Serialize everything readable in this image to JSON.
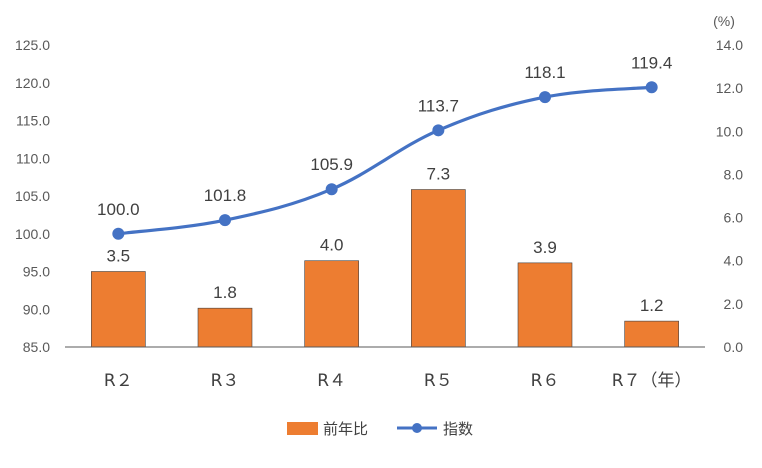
{
  "chart_data": {
    "type": "bar+line",
    "categories": [
      "R２",
      "R３",
      "R４",
      "R５",
      "R６",
      "R７（年）"
    ],
    "series": [
      {
        "name": "前年比",
        "type": "bar",
        "axis": "right",
        "color": "#ED7D31",
        "values": [
          3.5,
          1.8,
          4.0,
          7.3,
          3.9,
          1.2
        ],
        "labels": [
          "3.5",
          "1.8",
          "4.0",
          "7.3",
          "3.9",
          "1.2"
        ]
      },
      {
        "name": "指数",
        "type": "line",
        "axis": "left",
        "color": "#4472C4",
        "values": [
          100.0,
          101.8,
          105.9,
          113.7,
          118.1,
          119.4
        ],
        "labels": [
          "100.0",
          "101.8",
          "105.9",
          "113.7",
          "118.1",
          "119.4"
        ]
      }
    ],
    "left_axis": {
      "ylim": [
        85.0,
        125.0
      ],
      "ticks": [
        "85.0",
        "90.0",
        "95.0",
        "100.0",
        "105.0",
        "110.0",
        "115.0",
        "120.0",
        "125.0"
      ]
    },
    "right_axis": {
      "ylim": [
        0,
        14
      ],
      "unit": "(%)",
      "ticks": [
        "0.0",
        "2.0",
        "4.0",
        "6.0",
        "8.0",
        "10.0",
        "12.0",
        "14.0"
      ]
    },
    "legend_position": "bottom",
    "grid": false
  }
}
